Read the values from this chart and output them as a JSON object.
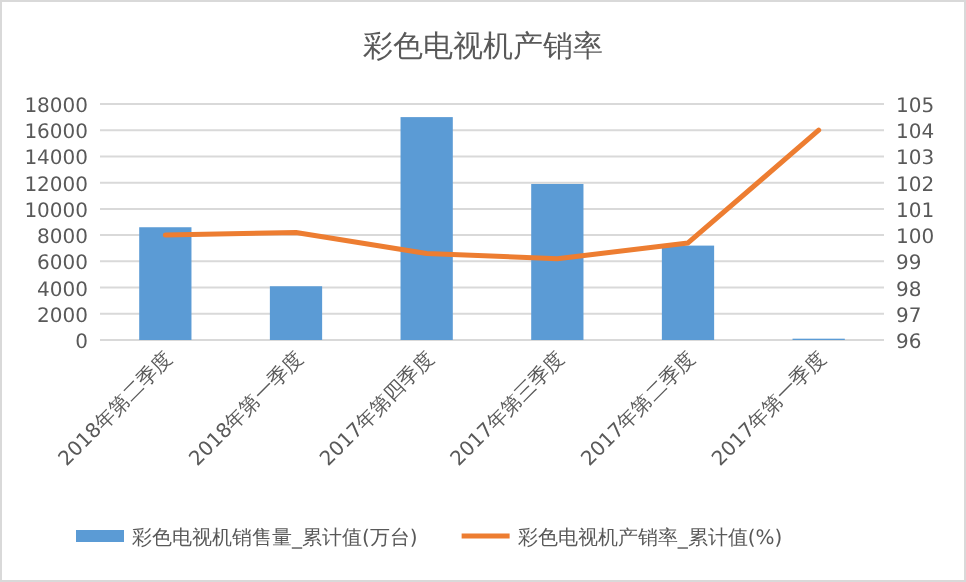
{
  "chart_data": {
    "type": "bar",
    "title": "彩色电视机产销率",
    "categories": [
      "2018年第二季度",
      "2018年第一季度",
      "2017年第四季度",
      "2017年第三季度",
      "2017年第二季度",
      "2017年第一季度"
    ],
    "series": [
      {
        "name": "彩色电视机销售量_累计值(万台)",
        "color": "#5b9bd5",
        "values": [
          8600,
          4100,
          17000,
          11900,
          7200,
          100
        ]
      },
      {
        "name": "彩色电视机产销率_累计值(%)",
        "type": "line",
        "axis": "y2",
        "color": "#ed7d31",
        "values": [
          100.0,
          100.1,
          99.3,
          99.1,
          99.7,
          104.0
        ]
      }
    ],
    "ylim": [
      0,
      18000
    ],
    "yticks": [
      0,
      2000,
      4000,
      6000,
      8000,
      10000,
      12000,
      14000,
      16000,
      18000
    ],
    "y2lim": [
      96,
      105
    ],
    "y2ticks": [
      96,
      97,
      98,
      99,
      100,
      101,
      102,
      103,
      104,
      105
    ],
    "grid": "y",
    "legend": "bottom",
    "marker": "none",
    "line_style": "solid"
  }
}
